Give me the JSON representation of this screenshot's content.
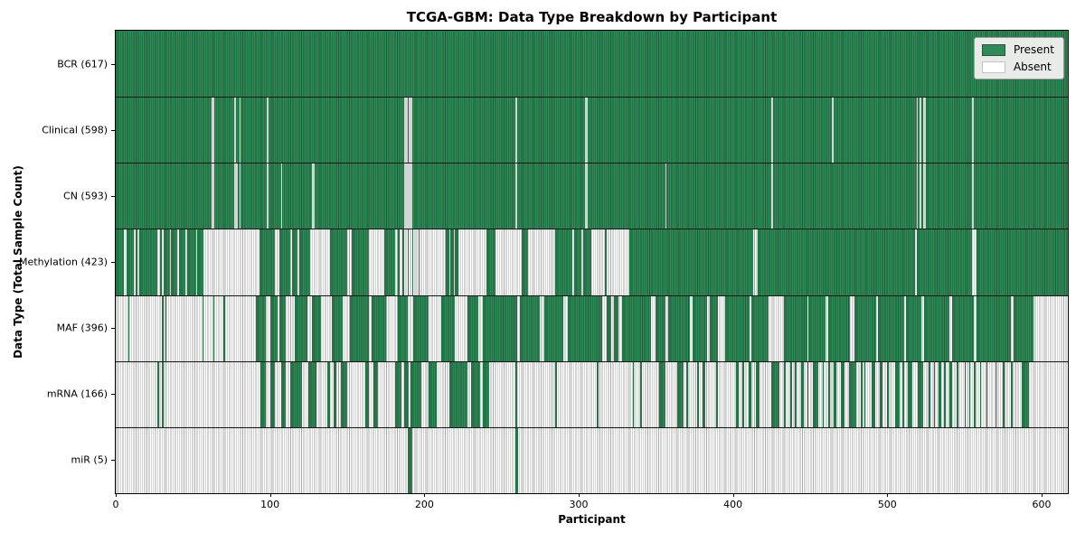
{
  "title": "TCGA-GBM: Data Type Breakdown by Participant",
  "colors": {
    "present": "#2e8b57",
    "present_edge": "#1c5c38",
    "absent": "#ffffff",
    "absent_edge": "#a9a9a9",
    "legend_background": "#e9ebe9"
  },
  "legend": {
    "present_label": "Present",
    "absent_label": "Absent"
  },
  "chart_data": {
    "type": "heatmap",
    "title": "TCGA-GBM: Data Type Breakdown by Participant",
    "xlabel": "Participant",
    "ylabel": "Data Type (Total Sample Count)",
    "x_min": 0,
    "x_max": 617,
    "x_ticks": [
      "0",
      "100",
      "200",
      "300",
      "400",
      "500",
      "600"
    ],
    "x_tick_values": [
      0,
      100,
      200,
      300,
      400,
      500,
      600
    ],
    "grid": false,
    "legend_position": "upper right",
    "value_encoding": {
      "present": 1,
      "absent": 0
    },
    "rows": [
      {
        "name": "BCR",
        "label": "BCR (617)",
        "count": 617,
        "present_runs": [
          [
            0,
            617
          ]
        ]
      },
      {
        "name": "Clinical",
        "label": "Clinical (598)",
        "count": 598,
        "absent_cols": [
          62,
          63,
          77,
          80,
          98,
          187,
          188,
          190,
          191,
          259,
          304,
          305,
          425,
          464,
          519,
          521,
          523,
          524,
          555
        ]
      },
      {
        "name": "CN",
        "label": "CN (593)",
        "count": 593,
        "absent_cols": [
          62,
          63,
          77,
          78,
          80,
          98,
          107,
          127,
          128,
          187,
          188,
          189,
          190,
          191,
          259,
          304,
          305,
          356,
          425,
          519,
          521,
          523,
          524,
          555
        ]
      },
      {
        "name": "Methylation",
        "label": "Methylation (423)",
        "count": 423,
        "present_runs": [
          [
            0,
            5
          ],
          [
            7,
            12
          ],
          [
            13,
            14
          ],
          [
            15,
            27
          ],
          [
            29,
            30
          ],
          [
            31,
            35
          ],
          [
            36,
            40
          ],
          [
            41,
            45
          ],
          [
            46,
            52
          ],
          [
            53,
            57
          ],
          [
            93,
            103
          ],
          [
            106,
            113
          ],
          [
            114,
            118
          ],
          [
            119,
            126
          ],
          [
            139,
            150
          ],
          [
            153,
            164
          ],
          [
            174,
            181
          ],
          [
            183,
            184
          ],
          [
            186,
            187
          ],
          [
            189,
            190
          ],
          [
            192,
            193
          ],
          [
            196,
            197
          ],
          [
            214,
            216
          ],
          [
            217,
            219
          ],
          [
            220,
            222
          ],
          [
            240,
            246
          ],
          [
            263,
            267
          ],
          [
            285,
            296
          ],
          [
            297,
            302
          ],
          [
            303,
            308
          ],
          [
            317,
            318
          ],
          [
            333,
            413
          ],
          [
            416,
            518
          ],
          [
            519,
            555
          ],
          [
            558,
            617
          ]
        ]
      },
      {
        "name": "MAF",
        "label": "MAF (396)",
        "count": 396,
        "present_runs": [
          [
            8,
            9
          ],
          [
            30,
            31
          ],
          [
            32,
            33
          ],
          [
            56,
            57
          ],
          [
            63,
            64
          ],
          [
            70,
            71
          ],
          [
            91,
            97
          ],
          [
            100,
            105
          ],
          [
            106,
            110
          ],
          [
            116,
            124
          ],
          [
            127,
            133
          ],
          [
            140,
            147
          ],
          [
            152,
            164
          ],
          [
            166,
            175
          ],
          [
            183,
            189
          ],
          [
            193,
            203
          ],
          [
            211,
            220
          ],
          [
            228,
            235
          ],
          [
            238,
            260
          ],
          [
            262,
            275
          ],
          [
            278,
            290
          ],
          [
            293,
            315
          ],
          [
            318,
            321
          ],
          [
            323,
            326
          ],
          [
            328,
            347
          ],
          [
            350,
            356
          ],
          [
            358,
            372
          ],
          [
            374,
            383
          ],
          [
            385,
            390
          ],
          [
            395,
            411
          ],
          [
            412,
            423
          ],
          [
            433,
            448
          ],
          [
            449,
            460
          ],
          [
            462,
            476
          ],
          [
            479,
            493
          ],
          [
            494,
            511
          ],
          [
            512,
            522
          ],
          [
            524,
            540
          ],
          [
            542,
            556
          ],
          [
            558,
            580
          ],
          [
            582,
            595
          ]
        ]
      },
      {
        "name": "mRNA",
        "label": "mRNA (166)",
        "count": 166,
        "present_runs": [
          [
            27,
            28
          ],
          [
            30,
            31
          ],
          [
            94,
            97
          ],
          [
            100,
            103
          ],
          [
            107,
            110
          ],
          [
            113,
            121
          ],
          [
            125,
            130
          ],
          [
            137,
            139
          ],
          [
            141,
            143
          ],
          [
            146,
            150
          ],
          [
            162,
            164
          ],
          [
            167,
            170
          ],
          [
            181,
            185
          ],
          [
            187,
            190
          ],
          [
            191,
            198
          ],
          [
            203,
            208
          ],
          [
            216,
            228
          ],
          [
            230,
            236
          ],
          [
            238,
            242
          ],
          [
            259,
            260
          ],
          [
            285,
            286
          ],
          [
            312,
            313
          ],
          [
            335,
            336
          ],
          [
            340,
            341
          ],
          [
            352,
            356
          ],
          [
            364,
            368
          ],
          [
            370,
            371
          ],
          [
            377,
            378
          ],
          [
            380,
            382
          ],
          [
            389,
            390
          ],
          [
            402,
            404
          ],
          [
            406,
            407
          ],
          [
            410,
            412
          ],
          [
            415,
            417
          ],
          [
            425,
            430
          ],
          [
            433,
            434
          ],
          [
            437,
            438
          ],
          [
            440,
            441
          ],
          [
            444,
            446
          ],
          [
            448,
            449
          ],
          [
            452,
            455
          ],
          [
            458,
            459
          ],
          [
            462,
            463
          ],
          [
            465,
            467
          ],
          [
            470,
            472
          ],
          [
            475,
            480
          ],
          [
            483,
            484
          ],
          [
            485,
            486
          ],
          [
            490,
            492
          ],
          [
            495,
            497
          ],
          [
            500,
            501
          ],
          [
            505,
            508
          ],
          [
            510,
            511
          ],
          [
            513,
            516
          ],
          [
            520,
            523
          ],
          [
            527,
            528
          ],
          [
            530,
            531
          ],
          [
            533,
            535
          ],
          [
            537,
            538
          ],
          [
            540,
            542
          ],
          [
            545,
            546
          ],
          [
            550,
            551
          ],
          [
            553,
            554
          ],
          [
            556,
            557
          ],
          [
            560,
            561
          ],
          [
            564,
            565
          ],
          [
            570,
            571
          ],
          [
            575,
            576
          ],
          [
            580,
            581
          ],
          [
            587,
            592
          ]
        ]
      },
      {
        "name": "miR",
        "label": "miR (5)",
        "count": 5,
        "present_runs": [
          [
            189,
            192
          ],
          [
            259,
            261
          ]
        ]
      }
    ]
  }
}
